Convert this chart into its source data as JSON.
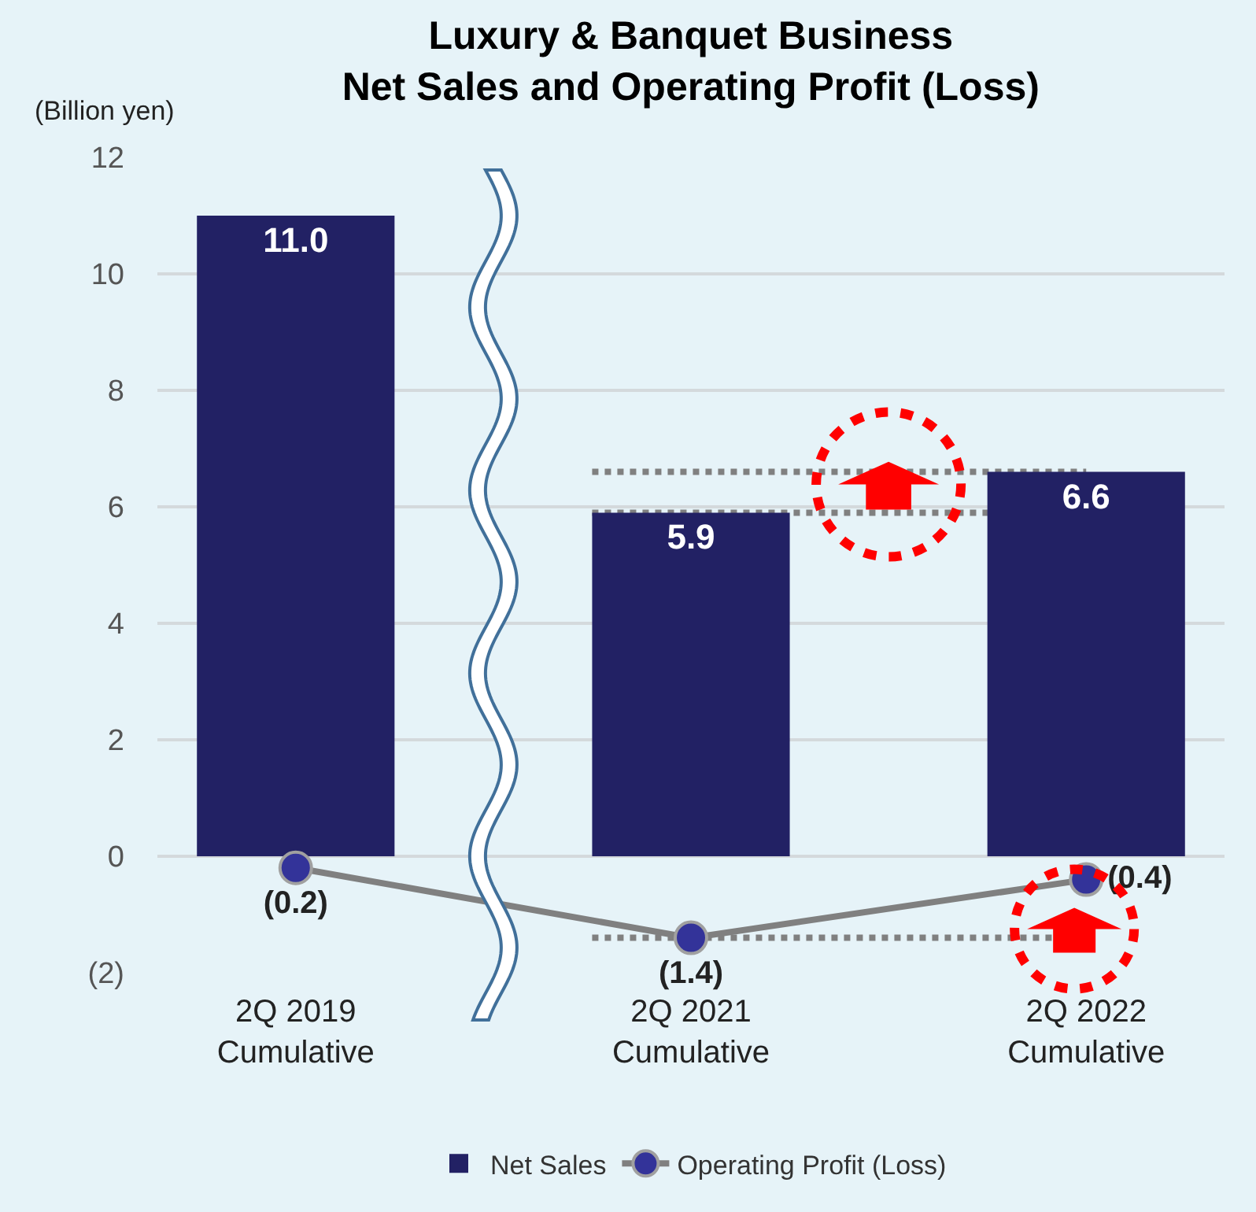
{
  "chart_data": {
    "type": "bar",
    "title": "Luxury & Banquet Business\nNet Sales and Operating Profit (Loss)",
    "ylabel": "(Billion yen)",
    "categories": [
      "2Q 2019\nCumulative",
      "2Q 2021\nCumulative",
      "2Q 2022\nCumulative"
    ],
    "series": [
      {
        "name": "Net Sales",
        "color": "#222164",
        "values": [
          11.0,
          5.9,
          6.6
        ],
        "value_labels": [
          "11.0",
          "5.9",
          "6.6"
        ]
      },
      {
        "name": "Operating Profit (Loss)",
        "type": "line",
        "color": "#808080",
        "values": [
          -0.2,
          -1.4,
          -0.4
        ],
        "value_labels": [
          "(0.2)",
          "(1.4)",
          "(0.4)"
        ],
        "marker": "circle"
      }
    ],
    "ylim": [
      -2,
      12
    ],
    "yticks": [
      {
        "value": -2,
        "label": "(2)"
      },
      0,
      2,
      4,
      6,
      8,
      10,
      12
    ],
    "ref_lines": [
      {
        "axis": "y",
        "value": 6.6,
        "color": "#808080",
        "line_style": "dotted"
      },
      {
        "axis": "y",
        "value": 5.9,
        "color": "#808080",
        "line_style": "dotted"
      },
      {
        "axis": "y",
        "value": -1.4,
        "color": "#808080",
        "line_style": "dotted"
      }
    ],
    "grid": "y",
    "legend": "bottom"
  }
}
